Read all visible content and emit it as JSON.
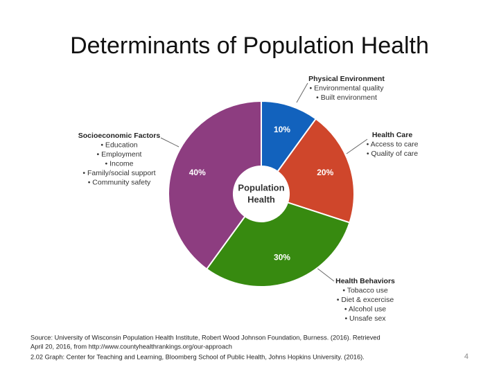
{
  "chart_data": {
    "type": "pie",
    "title": "Determinants of Population Health",
    "center_label": [
      "Population",
      "Health"
    ],
    "categories": [
      "Physical Environment",
      "Health Care",
      "Health Behaviors",
      "Socioeconomic Factors"
    ],
    "values": [
      10,
      20,
      30,
      40
    ],
    "value_labels": [
      "10%",
      "20%",
      "30%",
      "40%"
    ],
    "colors": [
      "#1262bd",
      "#cf462b",
      "#378a10",
      "#8d3d80"
    ],
    "details": [
      [
        "• Environmental quality",
        "• Built environment"
      ],
      [
        "• Access to care",
        "• Quality of care"
      ],
      [
        "• Tobacco use",
        "• Diet & excercise",
        "• Alcohol use",
        "• Unsafe sex"
      ],
      [
        "• Education",
        "• Employment",
        "• Income",
        "• Family/social support",
        "• Community safety"
      ]
    ]
  },
  "source": [
    "Source: University of Wisconsin Population Health Institute, Robert Wood Johnson Foundation, Burness. (2016). Retrieved",
    "April 20, 2016, from http://www.countyhealthrankings.org/our-approach",
    "2.02 Graph: Center for Teaching and Learning, Bloomberg School of Public Health, Johns Hopkins University. (2016)."
  ],
  "page_number": "4"
}
